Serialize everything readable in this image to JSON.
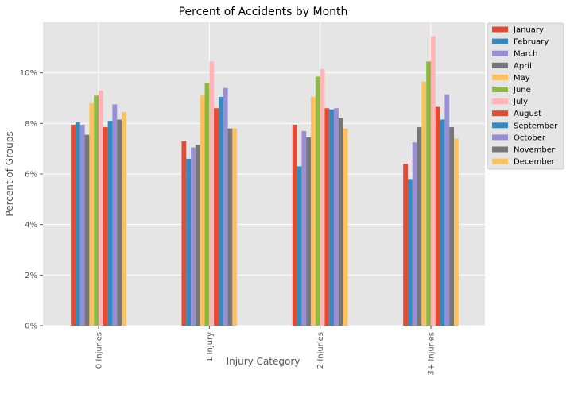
{
  "chart_data": {
    "type": "bar",
    "title": "Percent of Accidents by Month",
    "xlabel": "Injury Category",
    "ylabel": "Percent of Groups",
    "categories": [
      "0 Injuries",
      "1 Injury",
      "2 Injuries",
      "3+ Injuries"
    ],
    "ylim": [
      0,
      12
    ],
    "yticks": [
      0,
      2,
      4,
      6,
      8,
      10
    ],
    "ytick_labels": [
      "0%",
      "2%",
      "4%",
      "6%",
      "8%",
      "10%"
    ],
    "grid": true,
    "legend_position": "top-right outside",
    "series": [
      {
        "name": "January",
        "color": "#E24A33",
        "values": [
          7.95,
          7.3,
          7.95,
          6.4
        ]
      },
      {
        "name": "February",
        "color": "#348ABD",
        "values": [
          8.05,
          6.6,
          6.3,
          5.8
        ]
      },
      {
        "name": "March",
        "color": "#988ED5",
        "values": [
          7.95,
          7.05,
          7.7,
          7.25
        ]
      },
      {
        "name": "April",
        "color": "#777777",
        "values": [
          7.55,
          7.15,
          7.45,
          7.85
        ]
      },
      {
        "name": "May",
        "color": "#FBC15E",
        "values": [
          8.8,
          9.1,
          9.05,
          9.65
        ]
      },
      {
        "name": "June",
        "color": "#8EBA42",
        "values": [
          9.1,
          9.6,
          9.85,
          10.45
        ]
      },
      {
        "name": "July",
        "color": "#FFB5B8",
        "values": [
          9.3,
          10.45,
          10.15,
          11.45
        ]
      },
      {
        "name": "August",
        "color": "#E24A33",
        "values": [
          7.85,
          8.6,
          8.6,
          8.65
        ]
      },
      {
        "name": "September",
        "color": "#348ABD",
        "values": [
          8.1,
          9.05,
          8.55,
          8.15
        ]
      },
      {
        "name": "October",
        "color": "#988ED5",
        "values": [
          8.75,
          9.4,
          8.6,
          9.15
        ]
      },
      {
        "name": "November",
        "color": "#777777",
        "values": [
          8.15,
          7.8,
          8.2,
          7.85
        ]
      },
      {
        "name": "December",
        "color": "#FBC15E",
        "values": [
          8.45,
          7.8,
          7.8,
          7.4
        ]
      }
    ]
  }
}
